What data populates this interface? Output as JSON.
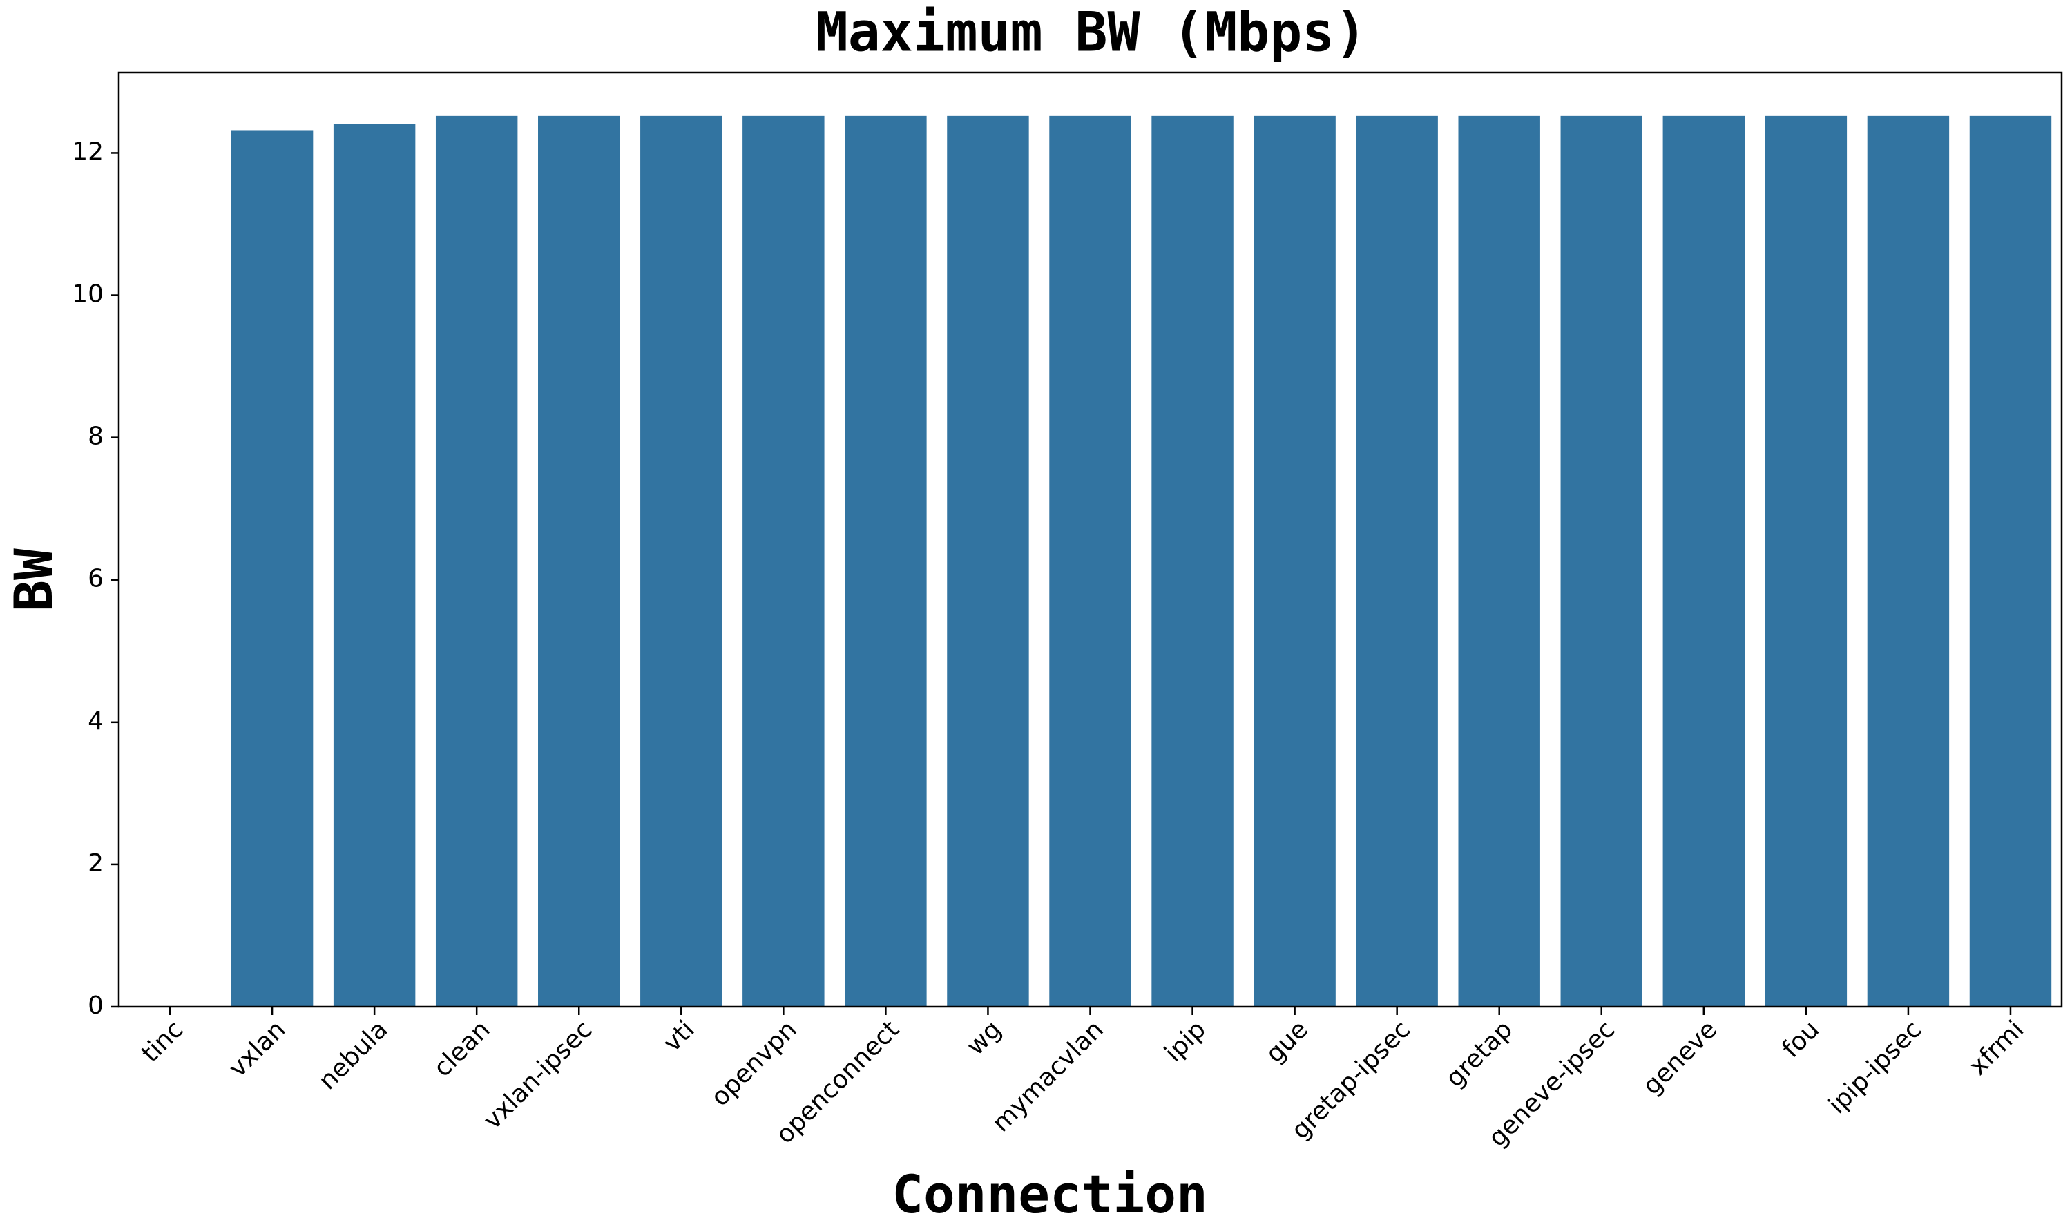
{
  "chart_data": {
    "type": "bar",
    "title": "Maximum BW (Mbps)",
    "x_label": "Connection",
    "y_label": "BW",
    "categories": [
      "tinc",
      "vxlan",
      "nebula",
      "clean",
      "vxlan-ipsec",
      "vti",
      "openvpn",
      "openconnect",
      "wg",
      "mymacvlan",
      "ipip",
      "gue",
      "gretap-ipsec",
      "gretap",
      "geneve-ipsec",
      "geneve",
      "fou",
      "ipip-ipsec",
      "xfrmi"
    ],
    "values": [
      0,
      12.32,
      12.41,
      12.52,
      12.52,
      12.52,
      12.52,
      12.52,
      12.52,
      12.52,
      12.52,
      12.52,
      12.52,
      12.52,
      12.52,
      12.52,
      12.52,
      12.52,
      12.52
    ],
    "color": "#3274a1",
    "ylim": [
      0,
      13.13
    ],
    "yticks": [
      0,
      2,
      4,
      6,
      8,
      10,
      12
    ],
    "grid": false
  }
}
